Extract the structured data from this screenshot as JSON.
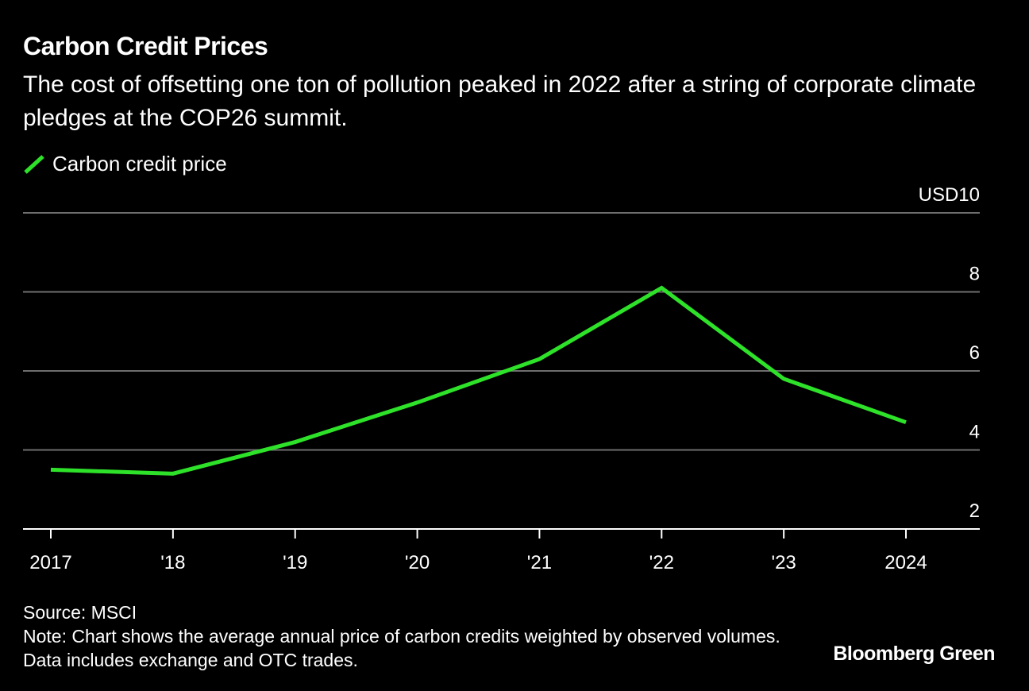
{
  "title": "Carbon Credit Prices",
  "subtitle": "The cost of offsetting one ton of pollution peaked in 2022 after a string of corporate climate pledges at the COP26 summit.",
  "legend": {
    "label": "Carbon credit price",
    "color": "#2ee22a"
  },
  "source": "Source: MSCI",
  "note": "Note: Chart shows the average annual price of carbon credits weighted by observed volumes. Data includes exchange and OTC trades.",
  "brand": "Bloomberg Green",
  "colors": {
    "background": "#000000",
    "line": "#2ee22a",
    "grid": "#6e6e6e",
    "axis": "#ffffff",
    "text": "#ffffff"
  },
  "chart_data": {
    "type": "line",
    "x": [
      2017,
      2018,
      2019,
      2020,
      2021,
      2022,
      2023,
      2024
    ],
    "x_tick_labels": [
      "2017",
      "'18",
      "'19",
      "'20",
      "'21",
      "'22",
      "'23",
      "2024"
    ],
    "series": [
      {
        "name": "Carbon credit price",
        "values": [
          3.5,
          3.4,
          4.2,
          5.2,
          6.3,
          8.1,
          5.8,
          4.7
        ]
      }
    ],
    "ylim": [
      2,
      10
    ],
    "y_ticks": [
      2,
      4,
      6,
      8,
      10
    ],
    "y_tick_labels": [
      "2",
      "4",
      "6",
      "8",
      "USD10"
    ],
    "y_axis_side": "right",
    "grid": true
  }
}
